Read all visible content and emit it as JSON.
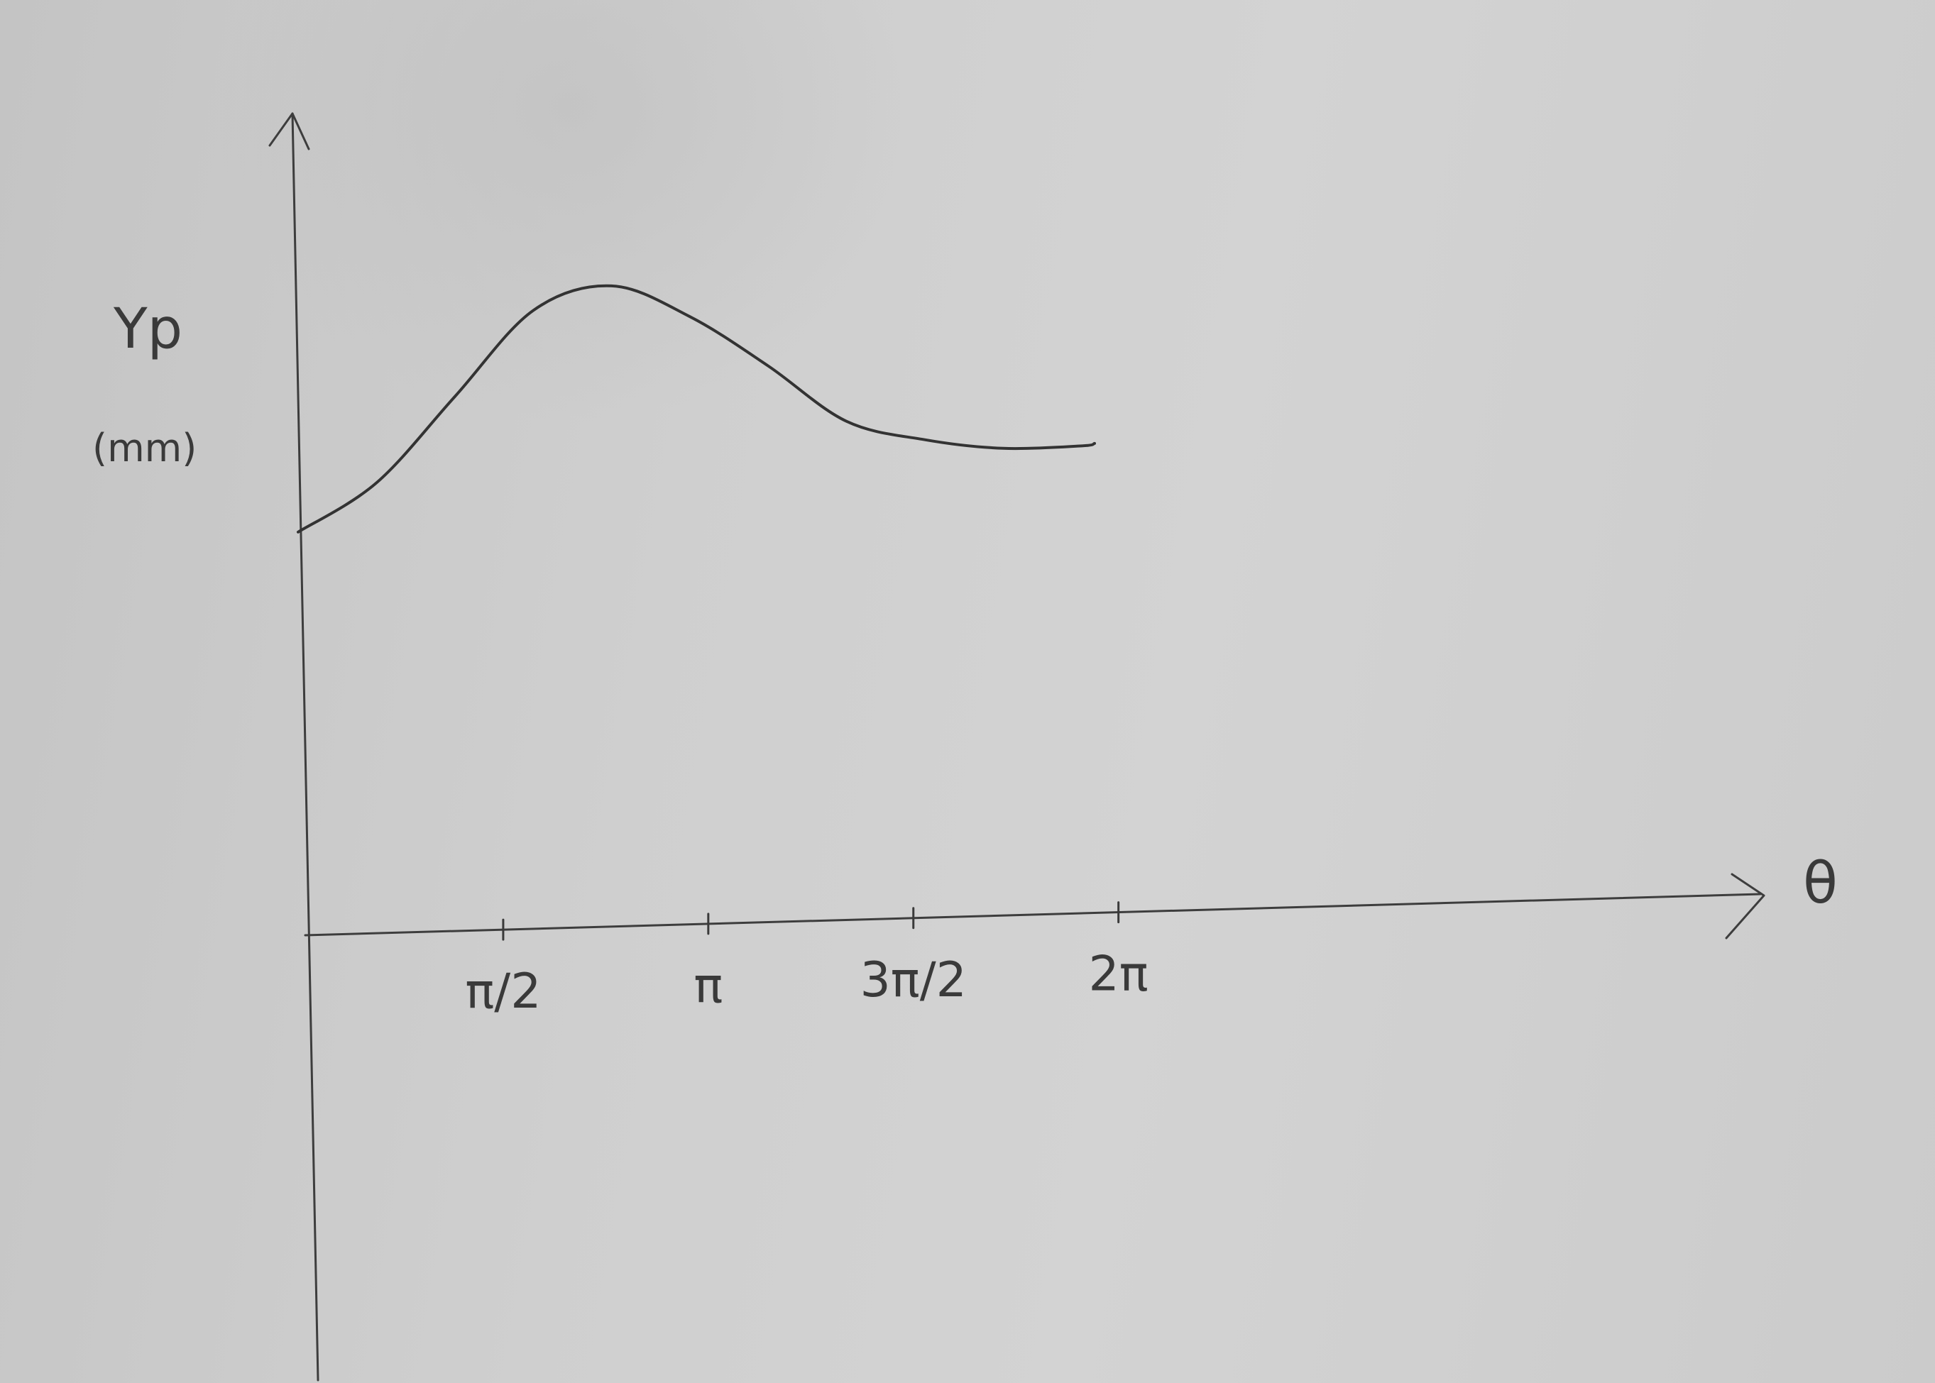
{
  "chart_data": {
    "type": "line",
    "xlabel": "θ",
    "ylabel": "Yp",
    "yunit": "(mm)",
    "x_tick_labels": [
      "π/2",
      "π",
      "3π/2",
      "2π"
    ],
    "x_tick_values": [
      1.5708,
      3.1416,
      4.7124,
      6.2832
    ],
    "xlim": [
      0,
      11.2
    ],
    "ylim": [
      -3.4,
      6.4
    ],
    "grid": false,
    "series": [
      {
        "x": [
          0,
          0.6,
          1.2,
          1.8,
          2.4,
          3.0,
          3.6,
          4.2,
          4.8,
          5.4,
          6.0,
          6.1
        ],
        "values": [
          3.0,
          3.4,
          4.1,
          4.8,
          5.0,
          4.75,
          4.35,
          3.9,
          3.75,
          3.68,
          3.7,
          3.72
        ]
      }
    ]
  }
}
